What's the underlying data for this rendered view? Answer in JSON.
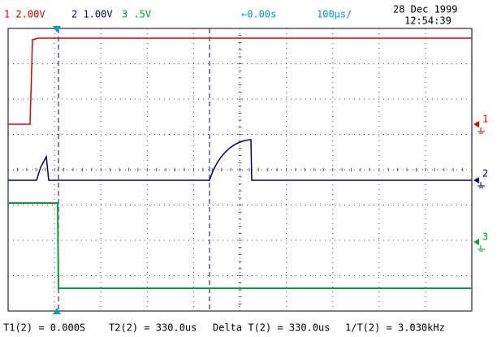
{
  "header": {
    "ch1": "1 2.00V",
    "ch2": "2 1.00V",
    "ch3": "3 .5V",
    "trigger": "←0.00s",
    "timebase": "100µs/",
    "date": "28 Dec 1999",
    "time": "12:54:39"
  },
  "markers": {
    "ch1": "1",
    "ch2": "2",
    "ch3": "3"
  },
  "footer": {
    "t1": "T1(2) = 0.000S",
    "t2": "T2(2) = 330.0us",
    "delta": "Delta T(2) = 330.0us",
    "freq": "1/T(2) = 3.030kHz"
  }
}
